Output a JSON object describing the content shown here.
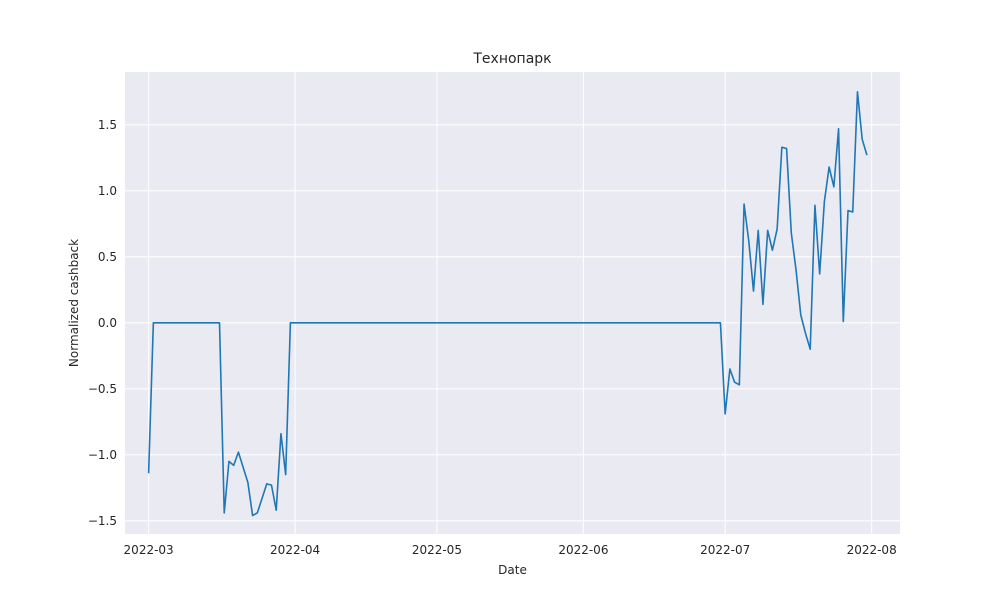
{
  "chart_data": {
    "type": "line",
    "title": "Технопарк",
    "xlabel": "Date",
    "ylabel": "Normalized cashback",
    "x_tick_labels": [
      "2022-03",
      "2022-04",
      "2022-05",
      "2022-06",
      "2022-07",
      "2022-08"
    ],
    "x_ticks": [
      "2022-03-01",
      "2022-04-01",
      "2022-05-01",
      "2022-06-01",
      "2022-07-01",
      "2022-08-01"
    ],
    "y_ticks": [
      -1.5,
      -1.0,
      -0.5,
      0.0,
      0.5,
      1.0,
      1.5
    ],
    "y_tick_labels": [
      "−1.5",
      "−1.0",
      "−0.5",
      "0.0",
      "0.5",
      "1.0",
      "1.5"
    ],
    "xlim": [
      "2022-02-24",
      "2022-08-07"
    ],
    "ylim": [
      -1.6,
      1.9
    ],
    "grid": true,
    "background_color": "#eaeaf2",
    "line_color": "#1f77b4",
    "series": [
      {
        "x": [
          "2022-03-01",
          "2022-03-02",
          "2022-03-16",
          "2022-03-17",
          "2022-03-18",
          "2022-03-19",
          "2022-03-20",
          "2022-03-22",
          "2022-03-23",
          "2022-03-24",
          "2022-03-26",
          "2022-03-27",
          "2022-03-28",
          "2022-03-29",
          "2022-03-30",
          "2022-03-31",
          "2022-06-30",
          "2022-07-01",
          "2022-07-02",
          "2022-07-03",
          "2022-07-04",
          "2022-07-05",
          "2022-07-06",
          "2022-07-07",
          "2022-07-08",
          "2022-07-09",
          "2022-07-10",
          "2022-07-11",
          "2022-07-12",
          "2022-07-13",
          "2022-07-14",
          "2022-07-15",
          "2022-07-16",
          "2022-07-17",
          "2022-07-18",
          "2022-07-19",
          "2022-07-20",
          "2022-07-21",
          "2022-07-22",
          "2022-07-23",
          "2022-07-24",
          "2022-07-25",
          "2022-07-26",
          "2022-07-27",
          "2022-07-28",
          "2022-07-29",
          "2022-07-30",
          "2022-07-31"
        ],
        "y": [
          -1.14,
          0.0,
          0.0,
          -1.44,
          -1.05,
          -1.08,
          -0.98,
          -1.21,
          -1.46,
          -1.44,
          -1.22,
          -1.23,
          -1.42,
          -0.84,
          -1.15,
          0.0,
          0.0,
          -0.69,
          -0.35,
          -0.45,
          -0.47,
          0.9,
          0.62,
          0.24,
          0.7,
          0.14,
          0.7,
          0.55,
          0.71,
          1.33,
          1.32,
          0.68,
          0.4,
          0.06,
          -0.08,
          -0.2,
          0.89,
          0.37,
          0.92,
          1.18,
          1.03,
          1.47,
          0.01,
          0.85,
          0.84,
          1.75,
          1.39,
          1.27
        ]
      }
    ]
  }
}
